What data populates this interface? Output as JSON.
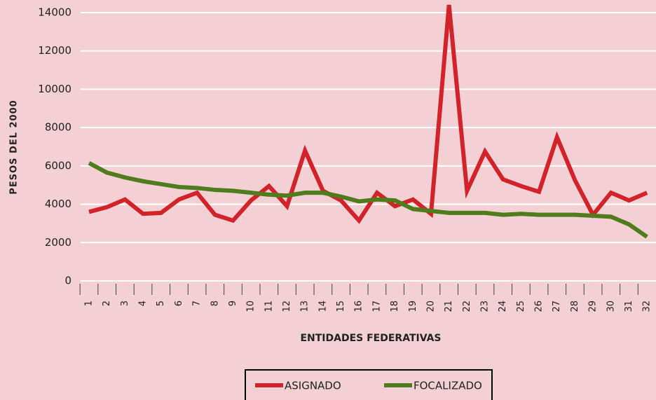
{
  "chart_data": {
    "type": "line",
    "categories": [
      "1",
      "2",
      "3",
      "4",
      "5",
      "6",
      "7",
      "8",
      "9",
      "10",
      "11",
      "12",
      "13",
      "14",
      "15",
      "16",
      "17",
      "18",
      "19",
      "20",
      "21",
      "22",
      "23",
      "24",
      "25",
      "26",
      "27",
      "28",
      "29",
      "30",
      "31",
      "32"
    ],
    "series": [
      {
        "name": "ASIGNADO",
        "color": "#d2232a",
        "values": [
          3600,
          3850,
          4250,
          3500,
          3550,
          4250,
          4600,
          3450,
          3150,
          4200,
          4950,
          3900,
          6800,
          4700,
          4200,
          3150,
          4600,
          3900,
          4250,
          3500,
          14400,
          4700,
          6750,
          5300,
          4950,
          4650,
          7500,
          5250,
          3450,
          4600,
          4200,
          4600
        ]
      },
      {
        "name": "FOCALIZADO",
        "color": "#4f7c1c",
        "values": [
          6150,
          5650,
          5400,
          5200,
          5050,
          4900,
          4850,
          4750,
          4700,
          4600,
          4500,
          4450,
          4600,
          4600,
          4400,
          4150,
          4250,
          4200,
          3750,
          3650,
          3550,
          3550,
          3550,
          3450,
          3500,
          3450,
          3450,
          3450,
          3400,
          3350,
          2950,
          2300
        ]
      }
    ],
    "ylim": [
      0,
      14000
    ],
    "yticks": [
      0,
      2000,
      4000,
      6000,
      8000,
      10000,
      12000,
      14000
    ],
    "xlabel": "ENTIDADES FEDERATIVAS",
    "ylabel": "PESOS DEL 2000",
    "grid": true,
    "legend": "bottom"
  }
}
